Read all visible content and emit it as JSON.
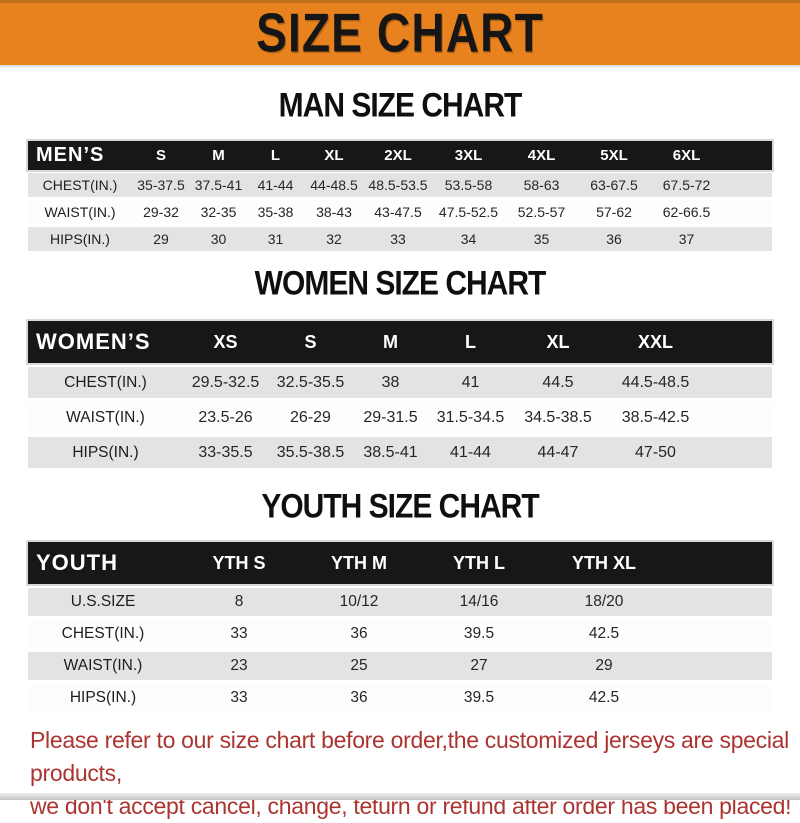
{
  "banner": {
    "title": "SIZE CHART"
  },
  "colors": {
    "banner_bg": "#E8821E",
    "header_bar": "#171717",
    "row_gray": "#E3E3E3",
    "note_red": "#AB3431"
  },
  "sections": {
    "men": {
      "heading": "MAN SIZE CHART",
      "header_label": "MEN’S",
      "columns": [
        "S",
        "M",
        "L",
        "XL",
        "2XL",
        "3XL",
        "4XL",
        "5XL",
        "6XL"
      ],
      "rows": [
        {
          "label": "CHEST(IN.)",
          "values": [
            "35-37.5",
            "37.5-41",
            "41-44",
            "44-48.5",
            "48.5-53.5",
            "53.5-58",
            "58-63",
            "63-67.5",
            "67.5-72"
          ]
        },
        {
          "label": "WAIST(IN.)",
          "values": [
            "29-32",
            "32-35",
            "35-38",
            "38-43",
            "43-47.5",
            "47.5-52.5",
            "52.5-57",
            "57-62",
            "62-66.5"
          ]
        },
        {
          "label": "HIPS(IN.)",
          "values": [
            "29",
            "30",
            "31",
            "32",
            "33",
            "34",
            "35",
            "36",
            "37"
          ]
        }
      ]
    },
    "women": {
      "heading": "WOMEN SIZE CHART",
      "header_label": "WOMEN’S",
      "columns": [
        "XS",
        "S",
        "M",
        "L",
        "XL",
        "XXL"
      ],
      "rows": [
        {
          "label": "CHEST(IN.)",
          "values": [
            "29.5-32.5",
            "32.5-35.5",
            "38",
            "41",
            "44.5",
            "44.5-48.5"
          ]
        },
        {
          "label": "WAIST(IN.)",
          "values": [
            "23.5-26",
            "26-29",
            "29-31.5",
            "31.5-34.5",
            "34.5-38.5",
            "38.5-42.5"
          ]
        },
        {
          "label": "HIPS(IN.)",
          "values": [
            "33-35.5",
            "35.5-38.5",
            "38.5-41",
            "41-44",
            "44-47",
            "47-50"
          ]
        }
      ]
    },
    "youth": {
      "heading": "YOUTH SIZE CHART",
      "header_label": "YOUTH",
      "columns": [
        "YTH S",
        "YTH M",
        "YTH L",
        "YTH XL"
      ],
      "rows": [
        {
          "label": "U.S.SIZE",
          "values": [
            "8",
            "10/12",
            "14/16",
            "18/20"
          ]
        },
        {
          "label": "CHEST(IN.)",
          "values": [
            "33",
            "36",
            "39.5",
            "42.5"
          ]
        },
        {
          "label": "WAIST(IN.)",
          "values": [
            "23",
            "25",
            "27",
            "29"
          ]
        },
        {
          "label": "HIPS(IN.)",
          "values": [
            "33",
            "36",
            "39.5",
            "42.5"
          ]
        }
      ]
    }
  },
  "footer": {
    "line1": "Please refer to our size chart before order,the customized jerseys are special products,",
    "line2": "we don't accept cancel, change, teturn or refund after order has been placed!"
  }
}
